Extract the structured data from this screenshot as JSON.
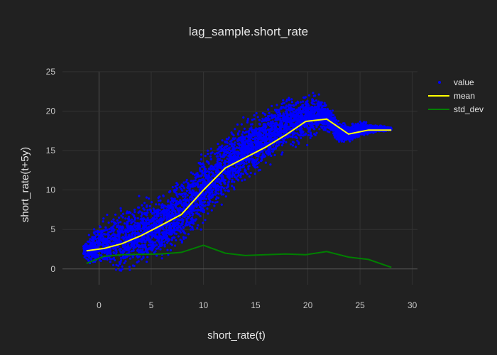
{
  "chart_data": {
    "type": "scatter",
    "title": "lag_sample.short_rate",
    "xlabel": "short_rate(t)",
    "ylabel": "short_rate(t+5y)",
    "xlim": [
      -3.5,
      30.5
    ],
    "ylim": [
      -2,
      25
    ],
    "xticks": [
      0,
      5,
      10,
      15,
      20,
      25,
      30
    ],
    "yticks": [
      0,
      5,
      10,
      15,
      20,
      25
    ],
    "grid": true,
    "legend_position": "top-right",
    "background_color": "#212121",
    "series": [
      {
        "name": "value",
        "kind": "markers",
        "color": "#0000ff",
        "envelope": {
          "x": [
            -1.5,
            0,
            2,
            4,
            6,
            8,
            10,
            12,
            14,
            16,
            18,
            20,
            21,
            22,
            23,
            24,
            25,
            26,
            28
          ],
          "y_low": [
            1.0,
            -0.5,
            -1.5,
            -0.8,
            0.2,
            2.0,
            5.0,
            8.0,
            10.5,
            12.5,
            14.5,
            15.5,
            16.5,
            17.0,
            15.5,
            16.0,
            16.5,
            17.0,
            17.5
          ],
          "y_high": [
            3.5,
            6.5,
            8.5,
            9.5,
            10.5,
            12.5,
            15.5,
            18.0,
            19.5,
            21.0,
            22.5,
            23.0,
            22.5,
            21.5,
            19.0,
            18.5,
            19.0,
            18.5,
            18.0
          ]
        }
      },
      {
        "name": "mean",
        "kind": "line",
        "color": "#ffff00",
        "x": [
          -1.2,
          0.5,
          2.2,
          4.0,
          5.9,
          7.9,
          10.0,
          12.1,
          14.0,
          15.9,
          17.9,
          19.8,
          21.8,
          23.9,
          25.8,
          28.0
        ],
        "y": [
          2.3,
          2.6,
          3.2,
          4.2,
          5.5,
          6.9,
          10.0,
          12.8,
          14.1,
          15.4,
          17.0,
          18.7,
          19.0,
          17.1,
          17.6,
          17.6
        ]
      },
      {
        "name": "std_dev",
        "kind": "line",
        "color": "#008000",
        "x": [
          -1.2,
          0.5,
          2.2,
          4.0,
          5.9,
          7.9,
          10.0,
          12.1,
          14.0,
          15.9,
          17.9,
          19.8,
          21.8,
          23.9,
          25.8,
          28.0
        ],
        "y": [
          0.7,
          1.6,
          1.8,
          1.85,
          1.9,
          2.1,
          3.0,
          2.0,
          1.7,
          1.8,
          1.9,
          1.8,
          2.2,
          1.5,
          1.2,
          0.2
        ]
      }
    ]
  }
}
